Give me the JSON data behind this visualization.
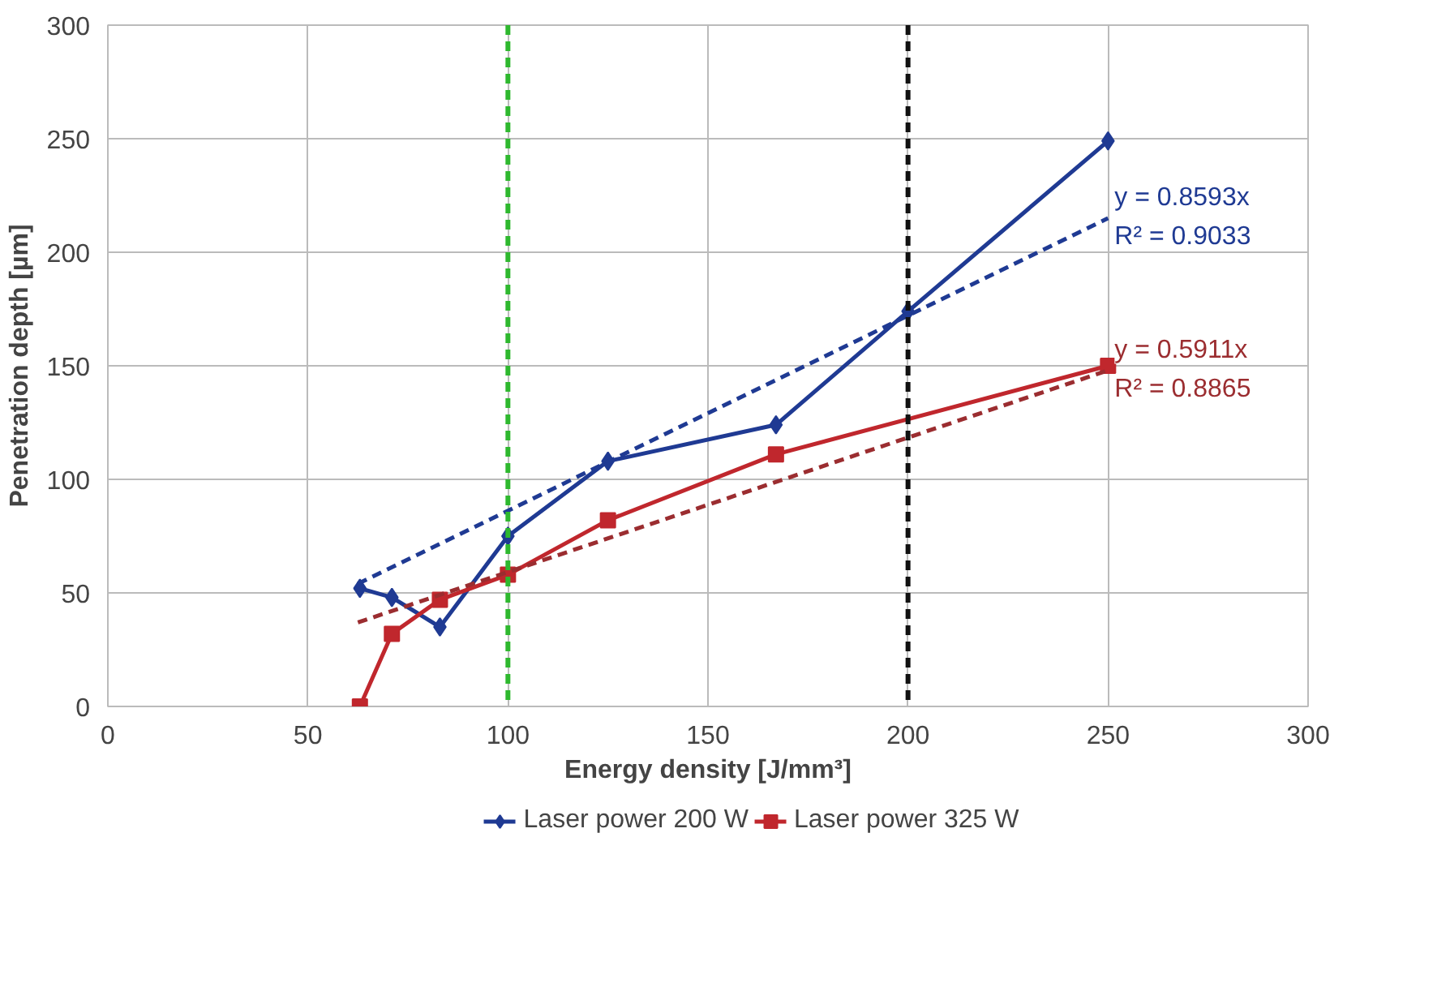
{
  "chart_data": {
    "type": "line",
    "xlabel": "Energy density [J/mm³]",
    "ylabel": "Penetration depth [µm]",
    "xlim": [
      0,
      300
    ],
    "xticks": [
      0,
      50,
      100,
      150,
      200,
      250,
      300
    ],
    "ylim": [
      0,
      300
    ],
    "yticks": [
      0,
      50,
      100,
      150,
      200,
      250,
      300
    ],
    "grid": true,
    "legend": "bottom",
    "series": [
      {
        "name": "Laser power 200 W",
        "color": "#1f3a93",
        "marker": "diamond",
        "x": [
          63,
          71,
          83,
          100,
          125,
          167,
          200,
          250
        ],
        "values": [
          52,
          48,
          35,
          75,
          108,
          124,
          174,
          249
        ]
      },
      {
        "name": "Laser power 325 W",
        "color": "#c0272d",
        "marker": "square",
        "x": [
          63,
          71,
          83,
          100,
          125,
          167,
          250
        ],
        "values": [
          0,
          32,
          47,
          58,
          82,
          111,
          150
        ]
      },
      {
        "color": "#1f3a93",
        "line_style": "dashed",
        "marker": "none",
        "x": [
          62.5,
          250
        ],
        "values": [
          54,
          215
        ]
      },
      {
        "color": "#9b2d30",
        "line_style": "dashed",
        "marker": "none",
        "x": [
          62.5,
          250
        ],
        "values": [
          37,
          148
        ]
      }
    ],
    "ref_lines": [
      {
        "axis": "x",
        "value": 100,
        "color": "#2eb82e",
        "line_style": "dashed"
      },
      {
        "axis": "x",
        "value": 200,
        "color": "#111111",
        "line_style": "dashed"
      }
    ],
    "annotations": [
      "y = 0.8593x",
      "R² = 0.9033",
      "y = 0.5911x",
      "R² = 0.8865"
    ]
  }
}
